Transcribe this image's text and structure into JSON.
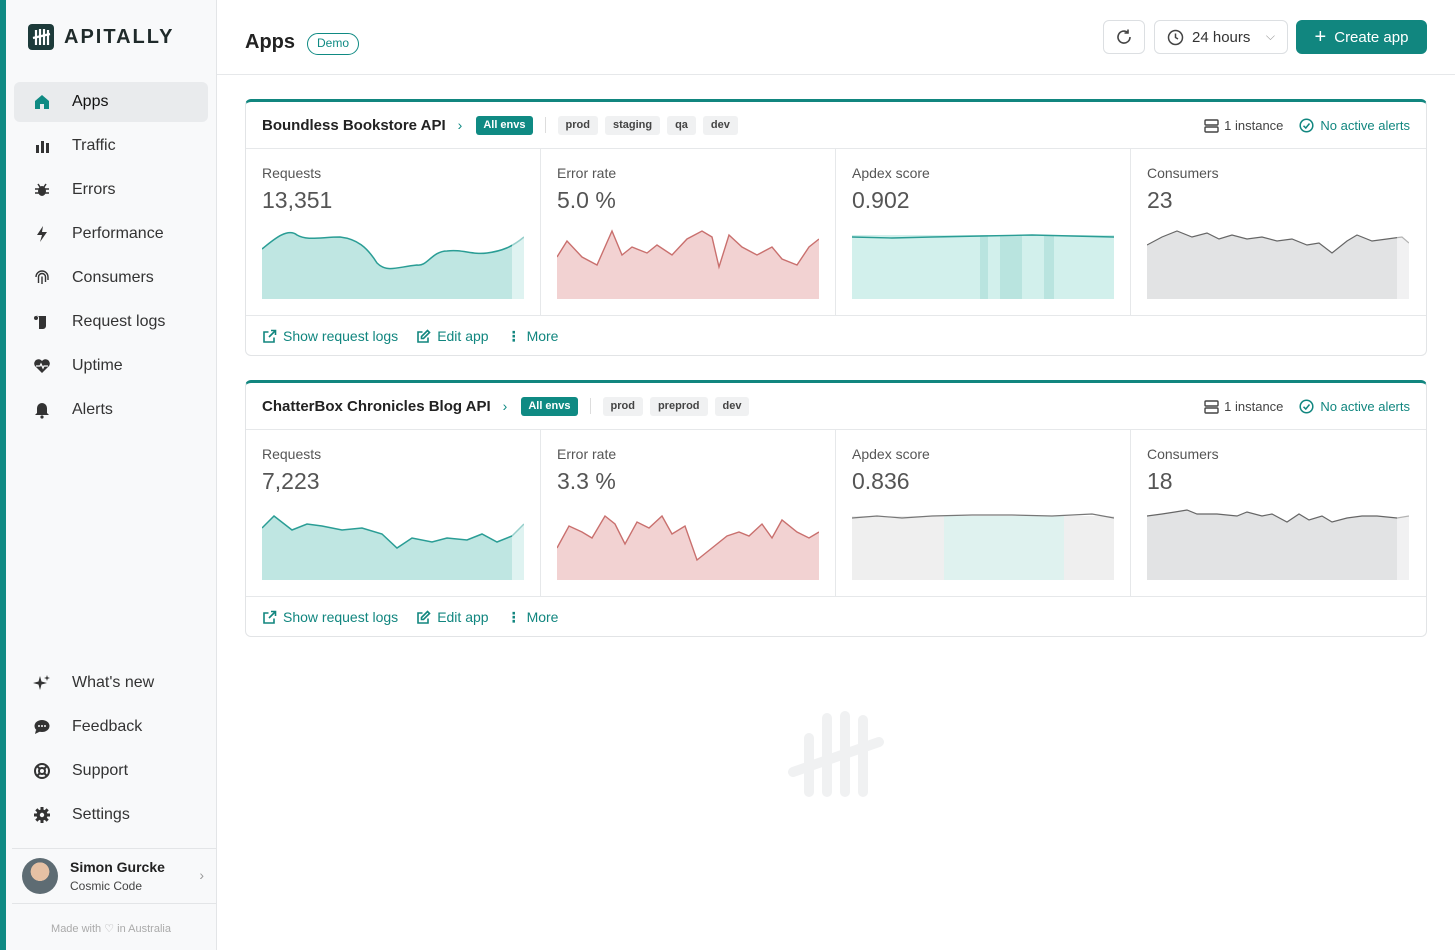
{
  "brand": {
    "name": "APITALLY",
    "accent": "#11867f"
  },
  "sidebar": {
    "nav": [
      {
        "label": "Apps",
        "icon": "home-icon",
        "active": true
      },
      {
        "label": "Traffic",
        "icon": "bar-chart-icon"
      },
      {
        "label": "Errors",
        "icon": "bug-icon"
      },
      {
        "label": "Performance",
        "icon": "lightning-icon"
      },
      {
        "label": "Consumers",
        "icon": "fingerprint-icon"
      },
      {
        "label": "Request logs",
        "icon": "scroll-icon"
      },
      {
        "label": "Uptime",
        "icon": "heartbeat-icon"
      },
      {
        "label": "Alerts",
        "icon": "bell-icon"
      }
    ],
    "bottom_nav": [
      {
        "label": "What's new",
        "icon": "sparkles-icon"
      },
      {
        "label": "Feedback",
        "icon": "chat-bubble-icon"
      },
      {
        "label": "Support",
        "icon": "lifebuoy-icon"
      },
      {
        "label": "Settings",
        "icon": "gear-icon"
      }
    ],
    "user": {
      "name": "Simon Gurcke",
      "org": "Cosmic Code"
    },
    "made_with": "Made with ♡ in Australia"
  },
  "header": {
    "title": "Apps",
    "badge": "Demo",
    "period": "24 hours",
    "create_label": "Create app"
  },
  "apps": [
    {
      "name": "Boundless Bookstore API",
      "env_all": "All envs",
      "envs": [
        "prod",
        "staging",
        "qa",
        "dev"
      ],
      "instances": "1 instance",
      "alerts": "No active alerts",
      "metrics": [
        {
          "label": "Requests",
          "value": "13,351"
        },
        {
          "label": "Error rate",
          "value": "5.0 %"
        },
        {
          "label": "Apdex score",
          "value": "0.902"
        },
        {
          "label": "Consumers",
          "value": "23"
        }
      ],
      "actions": [
        "Show request logs",
        "Edit app",
        "More"
      ]
    },
    {
      "name": "ChatterBox Chronicles Blog API",
      "env_all": "All envs",
      "envs": [
        "prod",
        "preprod",
        "dev"
      ],
      "instances": "1 instance",
      "alerts": "No active alerts",
      "metrics": [
        {
          "label": "Requests",
          "value": "7,223"
        },
        {
          "label": "Error rate",
          "value": "3.3 %"
        },
        {
          "label": "Apdex score",
          "value": "0.836"
        },
        {
          "label": "Consumers",
          "value": "18"
        }
      ],
      "actions": [
        "Show request logs",
        "Edit app",
        "More"
      ]
    }
  ]
}
